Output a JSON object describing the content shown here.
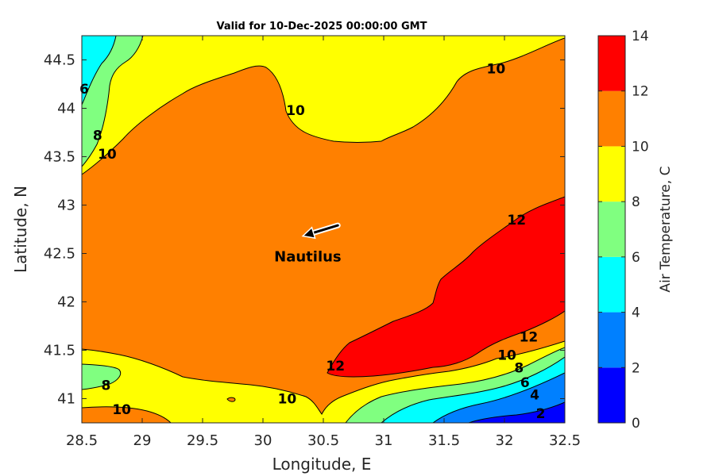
{
  "chart_data": {
    "type": "contour",
    "title": "Valid for 10-Dec-2025 00:00:00 GMT",
    "xlabel": "Longitude, E",
    "ylabel": "Latitude, N",
    "xlim": [
      28.5,
      32.5
    ],
    "ylim": [
      40.75,
      44.75
    ],
    "x_ticks": [
      "28.5",
      "29",
      "29.5",
      "30",
      "30.5",
      "31",
      "31.5",
      "32",
      "32.5"
    ],
    "y_ticks": [
      "44.5",
      "44",
      "43.5",
      "43",
      "42.5",
      "42",
      "41.5",
      "41"
    ],
    "colorbar": {
      "label": "Air Temperature, C",
      "levels": [
        0,
        2,
        4,
        6,
        8,
        10,
        12,
        14
      ],
      "tick_labels": [
        "0",
        "2",
        "4",
        "6",
        "8",
        "10",
        "12",
        "14"
      ],
      "colors": [
        "#0000ff",
        "#0080ff",
        "#00ffff",
        "#80ff80",
        "#ffff00",
        "#ff8000",
        "#ff0000",
        "#800000"
      ]
    },
    "contour_labels": [
      {
        "text": "6",
        "lon": 28.52,
        "lat": 44.2
      },
      {
        "text": "8",
        "lon": 28.63,
        "lat": 43.72
      },
      {
        "text": "10",
        "lon": 28.71,
        "lat": 43.53
      },
      {
        "text": "10",
        "lon": 30.27,
        "lat": 43.98
      },
      {
        "text": "10",
        "lon": 31.93,
        "lat": 44.41
      },
      {
        "text": "12",
        "lon": 32.1,
        "lat": 42.85
      },
      {
        "text": "12",
        "lon": 32.2,
        "lat": 41.64
      },
      {
        "text": "12",
        "lon": 30.6,
        "lat": 41.34
      },
      {
        "text": "10",
        "lon": 32.02,
        "lat": 41.45
      },
      {
        "text": "8",
        "lon": 32.12,
        "lat": 41.32
      },
      {
        "text": "6",
        "lon": 32.17,
        "lat": 41.17
      },
      {
        "text": "4",
        "lon": 32.25,
        "lat": 41.04
      },
      {
        "text": "2",
        "lon": 32.3,
        "lat": 40.85
      },
      {
        "text": "8",
        "lon": 28.7,
        "lat": 41.14
      },
      {
        "text": "10",
        "lon": 28.83,
        "lat": 40.89
      },
      {
        "text": "10",
        "lon": 30.2,
        "lat": 41.0
      }
    ],
    "station": {
      "name": "Nautilus",
      "lon": 30.45,
      "lat": 42.68
    },
    "wind_arrow": {
      "from_lon": 30.62,
      "from_lat": 42.79,
      "to_lon": 30.33,
      "to_lat": 42.68
    }
  }
}
